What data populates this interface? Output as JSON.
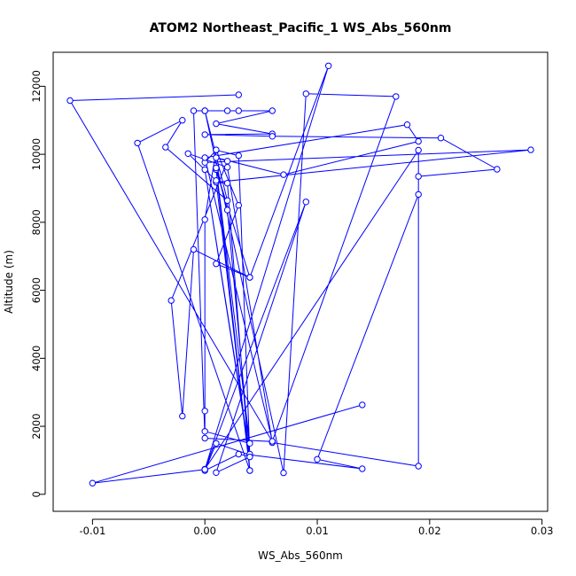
{
  "chart_data": {
    "type": "line",
    "title": "ATOM2 Northeast_Pacific_1 WS_Abs_560nm",
    "xlabel": "WS_Abs_560nm",
    "ylabel": "Altitude (m)",
    "xlim": [
      -0.0135,
      0.0305
    ],
    "ylim": [
      -500,
      13000
    ],
    "x_ticks": [
      -0.01,
      0.0,
      0.01,
      0.02,
      0.03
    ],
    "x_tick_labels": [
      "-0.01",
      "0.00",
      "0.01",
      "0.02",
      "0.03"
    ],
    "y_ticks": [
      0,
      2000,
      4000,
      6000,
      8000,
      10000,
      12000
    ],
    "y_tick_labels": [
      "0",
      "2000",
      "4000",
      "6000",
      "8000",
      "10000",
      "12000"
    ],
    "grid": false,
    "line_color": "#0000ff",
    "marker": "open-circle",
    "series": [
      {
        "points": [
          [
            0.003,
            11750
          ],
          [
            -0.012,
            11580
          ],
          [
            0.006,
            1550
          ],
          [
            0.0,
            1650
          ],
          [
            -0.001,
            11280
          ],
          [
            0.0,
            11280
          ],
          [
            0.002,
            11280
          ],
          [
            0.003,
            11280
          ],
          [
            0.006,
            11280
          ],
          [
            0.001,
            10900
          ],
          [
            0.006,
            10600
          ],
          [
            0.0,
            10580
          ],
          [
            0.006,
            10530
          ],
          [
            0.021,
            10480
          ],
          [
            0.026,
            9560
          ],
          [
            0.019,
            9350
          ],
          [
            0.019,
            8820
          ],
          [
            0.01,
            1030
          ],
          [
            0.014,
            750
          ],
          [
            0.004,
            1160
          ],
          [
            0.001,
            1500
          ],
          [
            0.0,
            700
          ],
          [
            0.003,
            1180
          ],
          [
            0.004,
            1120
          ],
          [
            0.003,
            9960
          ],
          [
            0.001,
            10120
          ],
          [
            0.0,
            9760
          ],
          [
            0.029,
            10130
          ],
          [
            0.001,
            9180
          ],
          [
            0.002,
            9150
          ],
          [
            0.004,
            700
          ],
          [
            0.001,
            9550
          ],
          [
            0.004,
            6380
          ],
          [
            0.001,
            6780
          ],
          [
            0.003,
            8500
          ],
          [
            0.001,
            10130
          ],
          [
            0.0,
            8080
          ],
          [
            0.0,
            2450
          ],
          [
            0.0,
            1850
          ],
          [
            0.004,
            1500
          ],
          [
            0.001,
            9600
          ],
          [
            0.002,
            8360
          ],
          [
            0.004,
            1180
          ],
          [
            0.0,
            9550
          ],
          [
            0.004,
            1100
          ],
          [
            0.001,
            640
          ],
          [
            0.009,
            8600
          ],
          [
            0.0,
            740
          ],
          [
            0.019,
            10120
          ],
          [
            0.019,
            830
          ],
          [
            0.006,
            1520
          ],
          [
            0.002,
            9620
          ],
          [
            -0.0015,
            10020
          ],
          [
            0.001,
            9230
          ],
          [
            0.004,
            700
          ],
          [
            -0.006,
            10330
          ],
          [
            -0.002,
            11000
          ],
          [
            -0.0035,
            10210
          ],
          [
            0.002,
            8640
          ],
          [
            0.0,
            11280
          ],
          [
            0.007,
            630
          ],
          [
            0.009,
            11780
          ],
          [
            0.017,
            11700
          ],
          [
            0.006,
            1560
          ],
          [
            0.0,
            9900
          ],
          [
            0.018,
            10870
          ],
          [
            0.019,
            10380
          ],
          [
            0.007,
            9400
          ],
          [
            0.001,
            9900
          ],
          [
            0.002,
            9800
          ],
          [
            -0.003,
            5700
          ],
          [
            -0.002,
            2300
          ],
          [
            -0.001,
            7200
          ],
          [
            0.004,
            6380
          ],
          [
            0.011,
            12600
          ],
          [
            0.0,
            730
          ],
          [
            -0.01,
            330
          ],
          [
            0.014,
            2630
          ]
        ]
      }
    ]
  }
}
